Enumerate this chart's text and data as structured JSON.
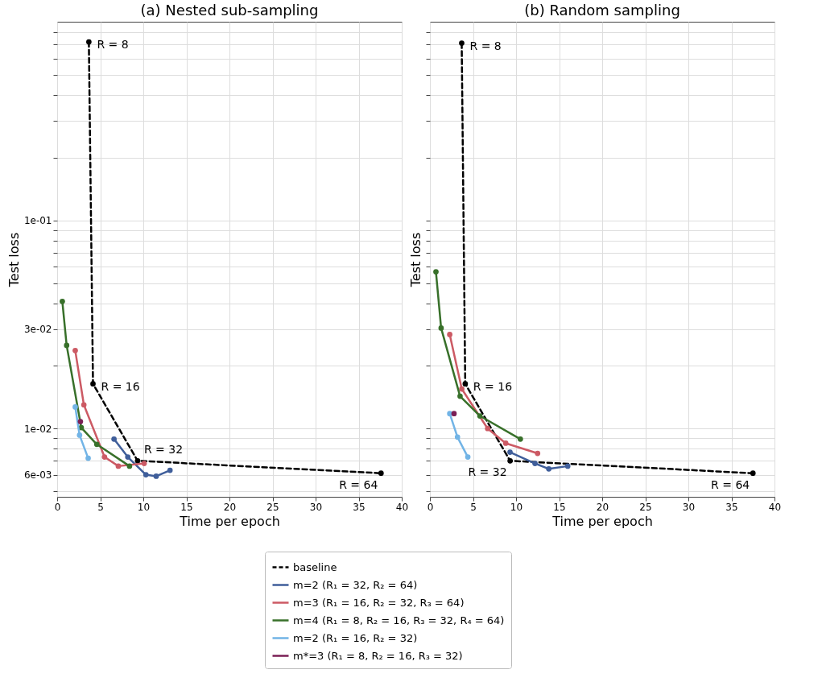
{
  "chart_data": [
    {
      "type": "line",
      "title": "(a) Nested sub-sampling",
      "xlabel": "Time per epoch",
      "ylabel": "Test loss",
      "log": "y",
      "grid": true,
      "legend": "bottom",
      "marker": "circle",
      "xlim": [
        0,
        40
      ],
      "xticks": [
        0,
        5,
        10,
        15,
        20,
        25,
        30,
        35,
        40
      ],
      "ylim": [
        0.0047,
        0.9
      ],
      "yticks": [
        {
          "value": 0.005,
          "label": null
        },
        {
          "value": 0.006,
          "label": "6e-03"
        },
        {
          "value": 0.007,
          "label": null
        },
        {
          "value": 0.008,
          "label": null
        },
        {
          "value": 0.009,
          "label": null
        },
        {
          "value": 0.01,
          "label": "1e-02"
        },
        {
          "value": 0.02,
          "label": null
        },
        {
          "value": 0.03,
          "label": "3e-02"
        },
        {
          "value": 0.04,
          "label": null
        },
        {
          "value": 0.05,
          "label": null
        },
        {
          "value": 0.06,
          "label": null
        },
        {
          "value": 0.07,
          "label": null
        },
        {
          "value": 0.08,
          "label": null
        },
        {
          "value": 0.09,
          "label": null
        },
        {
          "value": 0.1,
          "label": "1e-01"
        },
        {
          "value": 0.2,
          "label": null
        },
        {
          "value": 0.3,
          "label": null
        },
        {
          "value": 0.4,
          "label": null
        },
        {
          "value": 0.5,
          "label": null
        },
        {
          "value": 0.6,
          "label": null
        },
        {
          "value": 0.7,
          "label": null
        },
        {
          "value": 0.8,
          "label": null
        }
      ],
      "series": [
        {
          "name": "baseline",
          "color": "#000000",
          "line_style": "dashed",
          "x": [
            3.68,
            4.16,
            9.34,
            37.6
          ],
          "values": [
            0.72,
            0.0164,
            0.007,
            0.0061
          ]
        },
        {
          "name": "m=2 (R₁ = 32, R₂ = 64)",
          "color": "#3f5e9a",
          "x": [
            6.6,
            8.2,
            10.3,
            11.5,
            13.1
          ],
          "values": [
            0.0089,
            0.0073,
            0.006,
            0.0059,
            0.0063
          ]
        },
        {
          "name": "m=3 (R₁ = 16, R₂ = 32, R₃ = 64)",
          "color": "#cc5a64",
          "x": [
            2.1,
            3.1,
            5.5,
            7.1,
            10.1
          ],
          "values": [
            0.0237,
            0.013,
            0.0073,
            0.0066,
            0.0068
          ]
        },
        {
          "name": "m=4 (R₁ = 8, R₂ = 16, R₃ = 32, R₄ = 64)",
          "color": "#38702a",
          "x": [
            0.6,
            1.1,
            2.8,
            4.6,
            8.4
          ],
          "values": [
            0.0408,
            0.0251,
            0.0101,
            0.0084,
            0.0066
          ]
        },
        {
          "name": "m=2 (R₁ = 16, R₂ = 32)",
          "color": "#72b4e6",
          "x": [
            2.1,
            2.6,
            3.6
          ],
          "values": [
            0.0127,
            0.0093,
            0.0072
          ]
        },
        {
          "name": "m*=3 (R₁ = 8, R₂ = 16, R₃ = 32)",
          "color": "#7a1f55",
          "x": [
            2.7
          ],
          "values": [
            0.0108
          ]
        }
      ],
      "annotations": [
        {
          "text": "R = 8",
          "x": 3.68,
          "y": 0.72
        },
        {
          "text": "R = 16",
          "x": 4.16,
          "y": 0.0164
        },
        {
          "text": "R = 32",
          "x": 9.34,
          "y": 0.007
        },
        {
          "text": "R = 64",
          "x": 37.6,
          "y": 0.0061
        }
      ]
    },
    {
      "type": "line",
      "title": "(b) Random sampling",
      "xlabel": "Time per epoch",
      "ylabel": "Test loss",
      "log": "y",
      "grid": true,
      "legend": "bottom",
      "marker": "circle",
      "tick_labels": "x",
      "xlim": [
        0,
        40
      ],
      "xticks": [
        0,
        5,
        10,
        15,
        20,
        25,
        30,
        35,
        40
      ],
      "ylim": [
        0.0047,
        0.9
      ],
      "yticks": [
        0.005,
        0.006,
        0.007,
        0.008,
        0.009,
        0.01,
        0.02,
        0.03,
        0.04,
        0.05,
        0.06,
        0.07,
        0.08,
        0.09,
        0.1,
        0.2,
        0.3,
        0.4,
        0.5,
        0.6,
        0.7,
        0.8
      ],
      "series": [
        {
          "name": "baseline",
          "color": "#000000",
          "line_style": "dashed",
          "x": [
            3.69,
            4.1,
            9.31,
            37.5
          ],
          "values": [
            0.71,
            0.0164,
            0.007,
            0.0061
          ]
        },
        {
          "name": "m=2 (R₁ = 32, R₂ = 64)",
          "color": "#3f5e9a",
          "x": [
            9.3,
            12.2,
            13.8,
            16
          ],
          "values": [
            0.0077,
            0.0068,
            0.0064,
            0.0066
          ]
        },
        {
          "name": "m=3 (R₁ = 16, R₂ = 32, R₃ = 64)",
          "color": "#cc5a64",
          "x": [
            2.3,
            3.7,
            6.7,
            8.8,
            12.5
          ],
          "values": [
            0.0283,
            0.0155,
            0.01,
            0.0085,
            0.0076
          ]
        },
        {
          "name": "m=4 (R₁ = 8, R₂ = 16, R₃ = 32, R₄ = 64)",
          "color": "#38702a",
          "x": [
            0.7,
            1.3,
            3.5,
            5.8,
            10.5
          ],
          "values": [
            0.0566,
            0.0304,
            0.0143,
            0.0115,
            0.0089
          ]
        },
        {
          "name": "m=2 (R₁ = 16, R₂ = 32)",
          "color": "#72b4e6",
          "x": [
            2.3,
            3.2,
            4.4
          ],
          "values": [
            0.0118,
            0.0091,
            0.0073
          ]
        },
        {
          "name": "m*=3 (R₁ = 8, R₂ = 16, R₃ = 32)",
          "color": "#7a1f55",
          "x": [
            2.8
          ],
          "values": [
            0.0118
          ]
        }
      ],
      "annotations": [
        {
          "text": "R = 8",
          "x": 3.69,
          "y": 0.71
        },
        {
          "text": "R = 16",
          "x": 4.1,
          "y": 0.0164
        },
        {
          "text": "R = 32",
          "x": 9.31,
          "y": 0.007
        },
        {
          "text": "R = 64",
          "x": 37.5,
          "y": 0.0061
        }
      ]
    }
  ]
}
